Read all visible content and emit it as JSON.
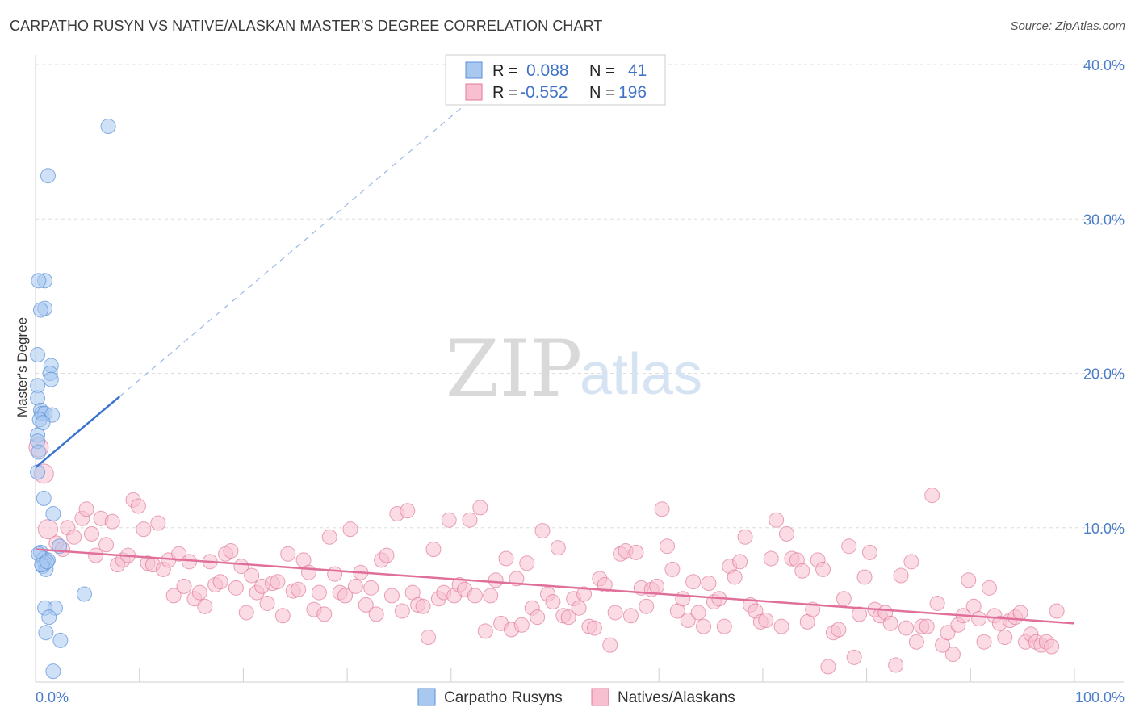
{
  "title": "CARPATHO RUSYN VS NATIVE/ALASKAN MASTER'S DEGREE CORRELATION CHART",
  "source": "Source: ZipAtlas.com",
  "watermark": {
    "zip": "ZIP",
    "atlas": "atlas"
  },
  "legend": {
    "rows": [
      {
        "r_label": "R =",
        "r_value": "0.088",
        "n_label": "N =",
        "n_value": "41",
        "color": "#a8c8f0",
        "stroke": "#5b8fd6"
      },
      {
        "r_label": "R =",
        "r_value": "-0.552",
        "n_label": "N =",
        "n_value": "196",
        "color": "#f7bfd0",
        "stroke": "#e07a9a"
      }
    ]
  },
  "bottom_legend": [
    {
      "label": "Carpatho Rusyns",
      "color": "#a8c8f0",
      "stroke": "#5b8fd6"
    },
    {
      "label": "Natives/Alaskans",
      "color": "#f7bfd0",
      "stroke": "#e07a9a"
    }
  ],
  "chart_data": {
    "type": "scatter",
    "title": "CARPATHO RUSYN VS NATIVE/ALASKAN MASTER'S DEGREE CORRELATION CHART",
    "xlabel": "",
    "ylabel": "Master's Degree",
    "xlim": [
      0,
      100
    ],
    "ylim": [
      0,
      40
    ],
    "x_tick_labels": [
      "0.0%",
      "100.0%"
    ],
    "y_ticks": [
      10,
      20,
      30,
      40
    ],
    "y_tick_labels": [
      "10.0%",
      "20.0%",
      "30.0%",
      "40.0%"
    ],
    "grid": true,
    "series": [
      {
        "name": "Carpatho Rusyns",
        "color": "#a8c8f0",
        "stroke": "#5b8fd6",
        "r": 0.088,
        "n": 41,
        "trend": {
          "x0": 0,
          "y0": 13.9,
          "x1": 8.1,
          "y1": 18.5,
          "dash_to_x": 41,
          "dash_to_y": 37.2,
          "color": "#3a74d0"
        },
        "points": [
          [
            7,
            36.0
          ],
          [
            1.2,
            32.8
          ],
          [
            0.9,
            26.0
          ],
          [
            0.3,
            26.0
          ],
          [
            0.9,
            24.2
          ],
          [
            0.5,
            24.1
          ],
          [
            0.2,
            21.2
          ],
          [
            1.5,
            20.5
          ],
          [
            1.4,
            20.0
          ],
          [
            1.5,
            19.6
          ],
          [
            0.2,
            19.2
          ],
          [
            0.2,
            18.4
          ],
          [
            0.5,
            17.6
          ],
          [
            0.6,
            17.4
          ],
          [
            0.9,
            17.4
          ],
          [
            1.6,
            17.3
          ],
          [
            0.4,
            17.0
          ],
          [
            0.7,
            16.8
          ],
          [
            0.2,
            16.0
          ],
          [
            0.2,
            15.6
          ],
          [
            0.3,
            14.9
          ],
          [
            0.2,
            13.6
          ],
          [
            0.8,
            11.9
          ],
          [
            1.7,
            10.9
          ],
          [
            2.3,
            8.8
          ],
          [
            0.5,
            8.4
          ],
          [
            0.8,
            8.0
          ],
          [
            1.2,
            7.9
          ],
          [
            0.9,
            7.7
          ],
          [
            0.7,
            7.5
          ],
          [
            1.0,
            7.3
          ],
          [
            4.7,
            5.7
          ],
          [
            1.9,
            4.8
          ],
          [
            0.9,
            4.8
          ],
          [
            1.3,
            4.2
          ],
          [
            1.0,
            3.2
          ],
          [
            2.4,
            2.7
          ],
          [
            1.7,
            0.7
          ],
          [
            0.3,
            8.3
          ],
          [
            0.6,
            7.6
          ],
          [
            1.1,
            7.8
          ]
        ]
      },
      {
        "name": "Natives/Alaskans",
        "color": "#f7bfd0",
        "stroke": "#e07a9a",
        "r": -0.552,
        "n": 196,
        "trend": {
          "x0": 0,
          "y0": 8.6,
          "x1": 100,
          "y1": 3.8,
          "color": "#e0709a"
        },
        "points": [
          [
            0.3,
            15.2
          ],
          [
            0.8,
            13.5
          ],
          [
            1.2,
            9.9
          ],
          [
            2.0,
            9.0
          ],
          [
            2.6,
            8.6
          ],
          [
            3.1,
            10.0
          ],
          [
            3.7,
            9.4
          ],
          [
            4.5,
            10.6
          ],
          [
            4.9,
            11.2
          ],
          [
            5.4,
            9.6
          ],
          [
            5.8,
            8.2
          ],
          [
            6.3,
            10.6
          ],
          [
            6.8,
            8.9
          ],
          [
            7.4,
            10.4
          ],
          [
            7.9,
            7.6
          ],
          [
            8.4,
            7.9
          ],
          [
            8.9,
            8.2
          ],
          [
            9.4,
            11.8
          ],
          [
            9.9,
            11.4
          ],
          [
            10.4,
            9.9
          ],
          [
            10.8,
            7.7
          ],
          [
            11.3,
            7.6
          ],
          [
            11.8,
            10.3
          ],
          [
            12.3,
            7.3
          ],
          [
            12.8,
            7.9
          ],
          [
            13.3,
            5.6
          ],
          [
            13.8,
            8.3
          ],
          [
            14.3,
            6.2
          ],
          [
            14.8,
            7.8
          ],
          [
            15.3,
            5.4
          ],
          [
            15.8,
            5.8
          ],
          [
            16.3,
            4.9
          ],
          [
            16.8,
            7.8
          ],
          [
            17.3,
            6.3
          ],
          [
            17.8,
            6.5
          ],
          [
            18.3,
            8.3
          ],
          [
            18.8,
            8.5
          ],
          [
            19.3,
            6.1
          ],
          [
            19.8,
            7.5
          ],
          [
            20.3,
            4.5
          ],
          [
            20.8,
            6.9
          ],
          [
            21.3,
            5.8
          ],
          [
            21.8,
            6.2
          ],
          [
            22.3,
            5.1
          ],
          [
            22.8,
            6.4
          ],
          [
            23.3,
            6.5
          ],
          [
            23.8,
            4.3
          ],
          [
            24.3,
            8.3
          ],
          [
            24.8,
            5.9
          ],
          [
            25.3,
            6.0
          ],
          [
            25.8,
            7.9
          ],
          [
            26.3,
            7.1
          ],
          [
            26.8,
            4.7
          ],
          [
            27.3,
            5.8
          ],
          [
            27.8,
            4.4
          ],
          [
            28.3,
            9.4
          ],
          [
            28.8,
            7.0
          ],
          [
            29.3,
            5.8
          ],
          [
            29.8,
            5.6
          ],
          [
            30.3,
            9.9
          ],
          [
            30.8,
            6.2
          ],
          [
            31.3,
            7.1
          ],
          [
            31.8,
            5.0
          ],
          [
            32.3,
            6.1
          ],
          [
            32.8,
            4.4
          ],
          [
            33.3,
            7.9
          ],
          [
            33.8,
            8.2
          ],
          [
            34.3,
            5.6
          ],
          [
            34.8,
            10.9
          ],
          [
            35.3,
            4.6
          ],
          [
            35.8,
            11.1
          ],
          [
            36.3,
            5.8
          ],
          [
            36.8,
            5.0
          ],
          [
            37.3,
            4.9
          ],
          [
            37.8,
            2.9
          ],
          [
            38.3,
            8.6
          ],
          [
            38.8,
            5.4
          ],
          [
            39.3,
            5.8
          ],
          [
            39.8,
            10.5
          ],
          [
            40.3,
            5.6
          ],
          [
            40.8,
            6.3
          ],
          [
            41.3,
            6.0
          ],
          [
            41.8,
            10.5
          ],
          [
            42.3,
            5.6
          ],
          [
            42.8,
            11.3
          ],
          [
            43.3,
            3.3
          ],
          [
            43.8,
            5.6
          ],
          [
            44.3,
            6.6
          ],
          [
            44.8,
            3.8
          ],
          [
            45.3,
            8.0
          ],
          [
            45.8,
            3.4
          ],
          [
            46.3,
            6.7
          ],
          [
            46.8,
            3.7
          ],
          [
            47.3,
            7.7
          ],
          [
            47.8,
            4.8
          ],
          [
            48.3,
            4.2
          ],
          [
            48.8,
            9.8
          ],
          [
            49.3,
            5.7
          ],
          [
            49.8,
            5.2
          ],
          [
            50.3,
            8.7
          ],
          [
            50.8,
            4.3
          ],
          [
            51.3,
            4.2
          ],
          [
            51.8,
            5.4
          ],
          [
            52.3,
            4.8
          ],
          [
            52.8,
            5.7
          ],
          [
            53.3,
            3.6
          ],
          [
            53.8,
            3.5
          ],
          [
            54.3,
            6.7
          ],
          [
            54.8,
            6.3
          ],
          [
            55.3,
            2.4
          ],
          [
            55.8,
            4.5
          ],
          [
            56.3,
            8.3
          ],
          [
            56.8,
            8.5
          ],
          [
            57.3,
            4.3
          ],
          [
            57.8,
            8.4
          ],
          [
            58.3,
            6.1
          ],
          [
            58.8,
            4.9
          ],
          [
            59.3,
            6.0
          ],
          [
            59.8,
            6.2
          ],
          [
            60.3,
            11.2
          ],
          [
            60.8,
            8.8
          ],
          [
            61.3,
            7.3
          ],
          [
            61.8,
            4.6
          ],
          [
            62.3,
            5.4
          ],
          [
            62.8,
            4.0
          ],
          [
            63.3,
            6.5
          ],
          [
            63.8,
            4.5
          ],
          [
            64.3,
            3.6
          ],
          [
            64.8,
            6.4
          ],
          [
            65.3,
            5.2
          ],
          [
            65.8,
            5.4
          ],
          [
            66.3,
            3.6
          ],
          [
            66.8,
            7.5
          ],
          [
            67.3,
            6.8
          ],
          [
            67.8,
            7.8
          ],
          [
            68.3,
            9.4
          ],
          [
            68.8,
            5.0
          ],
          [
            69.3,
            4.6
          ],
          [
            69.8,
            3.9
          ],
          [
            70.3,
            4.0
          ],
          [
            70.8,
            8.0
          ],
          [
            71.3,
            10.5
          ],
          [
            71.8,
            3.6
          ],
          [
            72.3,
            9.6
          ],
          [
            72.8,
            8.0
          ],
          [
            73.3,
            7.9
          ],
          [
            73.8,
            7.2
          ],
          [
            74.3,
            3.9
          ],
          [
            74.8,
            4.7
          ],
          [
            75.3,
            7.9
          ],
          [
            75.8,
            7.3
          ],
          [
            76.3,
            1.0
          ],
          [
            76.8,
            3.2
          ],
          [
            77.3,
            3.4
          ],
          [
            77.8,
            5.4
          ],
          [
            78.3,
            8.8
          ],
          [
            78.8,
            1.6
          ],
          [
            79.3,
            4.4
          ],
          [
            79.8,
            6.8
          ],
          [
            80.3,
            8.4
          ],
          [
            80.8,
            4.7
          ],
          [
            81.3,
            4.3
          ],
          [
            81.8,
            4.5
          ],
          [
            82.3,
            3.8
          ],
          [
            82.8,
            1.1
          ],
          [
            83.3,
            6.9
          ],
          [
            83.8,
            3.5
          ],
          [
            84.3,
            7.8
          ],
          [
            84.8,
            2.6
          ],
          [
            85.3,
            3.6
          ],
          [
            85.8,
            3.6
          ],
          [
            86.3,
            12.1
          ],
          [
            86.8,
            5.1
          ],
          [
            87.3,
            2.4
          ],
          [
            87.8,
            3.2
          ],
          [
            88.3,
            1.8
          ],
          [
            88.8,
            3.7
          ],
          [
            89.3,
            4.3
          ],
          [
            89.8,
            6.6
          ],
          [
            90.3,
            4.9
          ],
          [
            90.8,
            4.1
          ],
          [
            91.3,
            2.6
          ],
          [
            91.8,
            6.1
          ],
          [
            92.3,
            4.3
          ],
          [
            92.8,
            3.8
          ],
          [
            93.3,
            2.9
          ],
          [
            93.8,
            4.0
          ],
          [
            94.3,
            4.2
          ],
          [
            94.8,
            4.5
          ],
          [
            95.3,
            2.6
          ],
          [
            95.8,
            3.1
          ],
          [
            96.3,
            2.6
          ],
          [
            96.8,
            2.4
          ],
          [
            97.3,
            2.6
          ],
          [
            97.8,
            2.3
          ],
          [
            98.3,
            4.6
          ]
        ]
      }
    ]
  }
}
